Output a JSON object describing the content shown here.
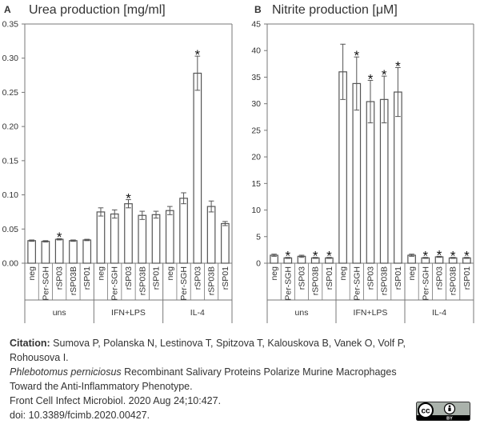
{
  "chart_data": [
    {
      "type": "bar",
      "panel_letter": "A",
      "title": "Urea production [mg/ml]",
      "ylim": [
        0,
        0.35
      ],
      "yticks": [
        "0.00",
        "0.05",
        "0.10",
        "0.15",
        "0.20",
        "0.25",
        "0.30",
        "0.35"
      ],
      "groups": [
        {
          "label": "uns",
          "bars": [
            {
              "category": "neg",
              "value": 0.033,
              "error": 0.001,
              "star": false
            },
            {
              "category": "Per-SGH",
              "value": 0.032,
              "error": 0.001,
              "star": false
            },
            {
              "category": "rSP03",
              "value": 0.035,
              "error": 0.001,
              "star": true
            },
            {
              "category": "rSP03B",
              "value": 0.033,
              "error": 0.001,
              "star": false
            },
            {
              "category": "rSP01",
              "value": 0.034,
              "error": 0.001,
              "star": false
            }
          ]
        },
        {
          "label": "IFN+LPS",
          "bars": [
            {
              "category": "neg",
              "value": 0.075,
              "error": 0.006,
              "star": false
            },
            {
              "category": "Per-SGH",
              "value": 0.072,
              "error": 0.006,
              "star": false
            },
            {
              "category": "rSP03",
              "value": 0.087,
              "error": 0.006,
              "star": true
            },
            {
              "category": "rSP03B",
              "value": 0.07,
              "error": 0.006,
              "star": false
            },
            {
              "category": "rSP01",
              "value": 0.071,
              "error": 0.005,
              "star": false
            }
          ]
        },
        {
          "label": "IL-4",
          "bars": [
            {
              "category": "neg",
              "value": 0.077,
              "error": 0.006,
              "star": false
            },
            {
              "category": "Per-SGH",
              "value": 0.095,
              "error": 0.008,
              "star": false
            },
            {
              "category": "rSP03",
              "value": 0.278,
              "error": 0.025,
              "star": true
            },
            {
              "category": "rSP03B",
              "value": 0.083,
              "error": 0.008,
              "star": false
            },
            {
              "category": "rSP01",
              "value": 0.058,
              "error": 0.003,
              "star": false
            }
          ]
        }
      ]
    },
    {
      "type": "bar",
      "panel_letter": "B",
      "title": "Nitrite production [μM]",
      "ylim": [
        0,
        45
      ],
      "yticks": [
        "0",
        "5",
        "10",
        "15",
        "20",
        "25",
        "30",
        "35",
        "40",
        "45"
      ],
      "groups": [
        {
          "label": "uns",
          "bars": [
            {
              "category": "neg",
              "value": 1.5,
              "error": 0.2,
              "star": false
            },
            {
              "category": "Per-SGH",
              "value": 1.0,
              "error": 0.1,
              "star": true
            },
            {
              "category": "rSP03",
              "value": 1.3,
              "error": 0.2,
              "star": false
            },
            {
              "category": "rSP03B",
              "value": 1.0,
              "error": 0.1,
              "star": true
            },
            {
              "category": "rSP01",
              "value": 1.0,
              "error": 0.1,
              "star": true
            }
          ]
        },
        {
          "label": "IFN+LPS",
          "bars": [
            {
              "category": "neg",
              "value": 36.0,
              "error": 5.2,
              "star": false
            },
            {
              "category": "Per-SGH",
              "value": 33.8,
              "error": 5.0,
              "star": true
            },
            {
              "category": "rSP03",
              "value": 30.4,
              "error": 4.0,
              "star": true
            },
            {
              "category": "rSP03B",
              "value": 30.8,
              "error": 4.4,
              "star": true
            },
            {
              "category": "rSP01",
              "value": 32.2,
              "error": 4.6,
              "star": true
            }
          ]
        },
        {
          "label": "IL-4",
          "bars": [
            {
              "category": "neg",
              "value": 1.5,
              "error": 0.2,
              "star": false
            },
            {
              "category": "Per-SGH",
              "value": 1.0,
              "error": 0.1,
              "star": true
            },
            {
              "category": "rSP03",
              "value": 1.2,
              "error": 0.1,
              "star": true
            },
            {
              "category": "rSP03B",
              "value": 1.0,
              "error": 0.1,
              "star": true
            },
            {
              "category": "rSP01",
              "value": 1.0,
              "error": 0.1,
              "star": true
            }
          ]
        }
      ]
    }
  ],
  "caption": {
    "label": "Citation:",
    "authors": " Sumova P, Polanska N, Lestinova T, Spitzova T, Kalouskova B, Vanek O, Volf P, Rohousova I.",
    "title_italic": "Phlebotomus perniciosus",
    "title_rest": " Recombinant Salivary Proteins Polarize Murine Macrophages Toward the Anti-Inflammatory Phenotype.",
    "journal": "Front Cell Infect Microbiol. 2020 Aug 24;10:427.",
    "doi": "doi: 10.3389/fcimb.2020.00427."
  },
  "license_badge": {
    "top": "cc",
    "bottom": "BY"
  },
  "colors": {
    "bar_fill": "#ffffff",
    "bar_stroke": "#555555",
    "axis": "#777777",
    "text": "#333333"
  }
}
